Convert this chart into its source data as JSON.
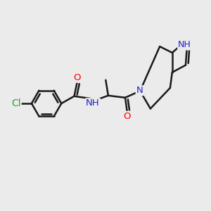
{
  "bg_color": "#ebebeb",
  "bond_color": "#1a1a1a",
  "bond_width": 1.8,
  "dbo": 0.12,
  "atom_colors": {
    "O": "#ff0000",
    "N": "#2222cc",
    "Cl": "#22aa22",
    "NH": "#2222cc",
    "H": "#444444"
  },
  "font_size": 9.5
}
